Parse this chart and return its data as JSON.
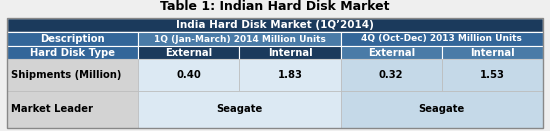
{
  "title": "Table 1: Indian Hard Disk Market",
  "header_row": "India Hard Disk Market (1Q’2014)",
  "row1_desc": "Description",
  "row1_1q": "1Q (Jan-March) 2014 Million Units",
  "row1_4q": "4Q (Oct-Dec) 2013 Million Units",
  "row2_labels": [
    "Hard Disk Type",
    "External",
    "Internal",
    "External",
    "Internal"
  ],
  "row3_vals": [
    "Shipments (Million)",
    "0.40",
    "1.83",
    "0.32",
    "1.53"
  ],
  "row4_leader": "Market Leader",
  "row4_seagate": "Seagate",
  "color_dark_navy": "#1B3A5C",
  "color_medium_blue": "#336699",
  "color_teal": "#4A7BA7",
  "color_light_blue_row": "#C5D9E8",
  "color_lighter_blue": "#DCE9F3",
  "color_white": "#FFFFFF",
  "color_light_gray": "#D3D3D3",
  "color_bg": "#EFEFEF",
  "title_fontsize": 9,
  "cell_fontsize": 7.2
}
